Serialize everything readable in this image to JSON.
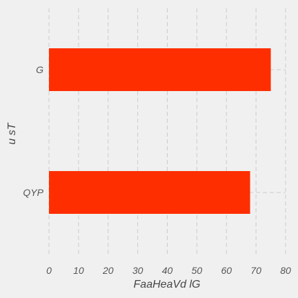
{
  "chart_data": {
    "type": "bar",
    "orientation": "horizontal",
    "categories": [
      "QYP",
      "G"
    ],
    "values": [
      68,
      75
    ],
    "xlabel": "FaaHeaVd  lG",
    "ylabel": "u sT",
    "xlim": [
      0,
      80
    ],
    "xticks": [
      "0",
      "10",
      "20",
      "30",
      "40",
      "50",
      "60",
      "70",
      "80"
    ],
    "grid": true,
    "legend": "none",
    "colors": {
      "bar": "#ff2e00",
      "background": "#f0f0f0",
      "grid": "#cbcbcb"
    }
  }
}
